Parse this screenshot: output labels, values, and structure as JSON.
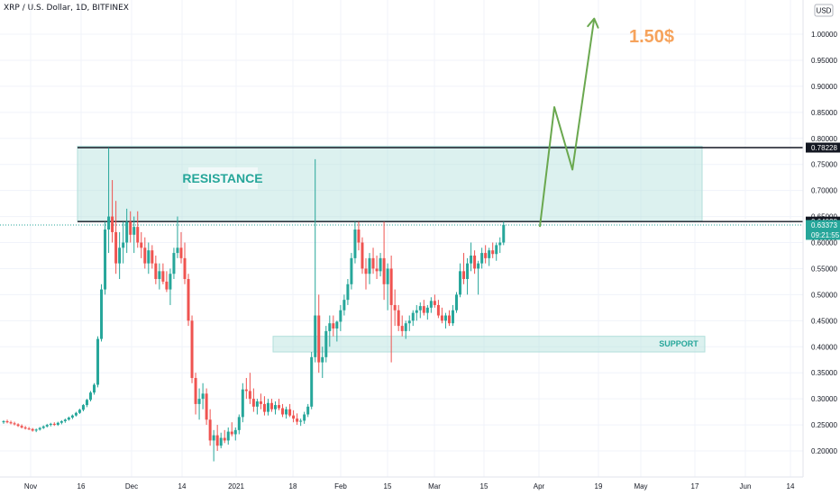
{
  "header": {
    "title": "XRP / U.S. Dollar, 1D, BITFINEX"
  },
  "axis_controls": {
    "top_left": "1",
    "currency": "USD"
  },
  "colors": {
    "up": "#26a69a",
    "down": "#ef5350",
    "zone": "#b2dfdb",
    "zone_text": "#26a69a",
    "arrow": "#6aa84f",
    "target_text": "#f6a35c",
    "grid": "#f0f3fa",
    "axis_text": "#131722"
  },
  "chart_data": {
    "type": "candlestick",
    "title": "XRP / U.S. Dollar, 1D, BITFINEX",
    "ylim": [
      0.17,
      1.06
    ],
    "y_ticks": [
      "1.00000",
      "0.95000",
      "0.90000",
      "0.85000",
      "0.80000",
      "0.75000",
      "0.70000",
      "0.65000",
      "0.60000",
      "0.55000",
      "0.50000",
      "0.45000",
      "0.40000",
      "0.35000",
      "0.30000",
      "0.25000",
      "0.20000"
    ],
    "x_ticks": [
      "Nov",
      "16",
      "Dec",
      "14",
      "2021",
      "18",
      "Feb",
      "15",
      "Mar",
      "15",
      "Apr",
      "19",
      "May",
      "17",
      "Jun",
      "14"
    ],
    "price_labels": [
      {
        "value": 0.78228,
        "text": "0.78228",
        "style": "dark"
      },
      {
        "value": 0.64028,
        "text": "0.64028",
        "style": "dark"
      },
      {
        "value": 0.63373,
        "text": "0.63373",
        "text2": "09:21:55",
        "style": "green"
      }
    ],
    "levels": [
      0.78228,
      0.64028
    ],
    "current_price": 0.63373,
    "zones": [
      {
        "label": "RESISTANCE",
        "low": 0.641,
        "high": 0.785
      },
      {
        "label": "SUPPORT",
        "low": 0.39,
        "high": 0.42
      }
    ],
    "annotations": [
      {
        "text": "1.50$",
        "kind": "target"
      }
    ],
    "projection_path": [
      {
        "t": 148,
        "y": 0.63
      },
      {
        "t": 152,
        "y": 0.86
      },
      {
        "t": 157,
        "y": 0.74
      },
      {
        "t": 163,
        "y": 1.03
      }
    ],
    "ohlc_by_day": [
      [
        0.255,
        0.259,
        0.252,
        0.257
      ],
      [
        0.257,
        0.26,
        0.253,
        0.255
      ],
      [
        0.255,
        0.258,
        0.251,
        0.253
      ],
      [
        0.253,
        0.256,
        0.249,
        0.251
      ],
      [
        0.251,
        0.253,
        0.246,
        0.248
      ],
      [
        0.248,
        0.251,
        0.243,
        0.245
      ],
      [
        0.245,
        0.248,
        0.241,
        0.243
      ],
      [
        0.243,
        0.246,
        0.24,
        0.242
      ],
      [
        0.242,
        0.244,
        0.237,
        0.239
      ],
      [
        0.239,
        0.243,
        0.236,
        0.241
      ],
      [
        0.241,
        0.246,
        0.239,
        0.244
      ],
      [
        0.244,
        0.249,
        0.242,
        0.247
      ],
      [
        0.247,
        0.252,
        0.245,
        0.25
      ],
      [
        0.25,
        0.254,
        0.247,
        0.252
      ],
      [
        0.252,
        0.255,
        0.248,
        0.25
      ],
      [
        0.25,
        0.256,
        0.248,
        0.254
      ],
      [
        0.254,
        0.259,
        0.251,
        0.257
      ],
      [
        0.257,
        0.262,
        0.254,
        0.26
      ],
      [
        0.26,
        0.266,
        0.258,
        0.264
      ],
      [
        0.264,
        0.27,
        0.261,
        0.268
      ],
      [
        0.268,
        0.275,
        0.266,
        0.273
      ],
      [
        0.273,
        0.281,
        0.271,
        0.279
      ],
      [
        0.279,
        0.29,
        0.276,
        0.288
      ],
      [
        0.288,
        0.3,
        0.284,
        0.298
      ],
      [
        0.298,
        0.315,
        0.295,
        0.312
      ],
      [
        0.312,
        0.33,
        0.308,
        0.327
      ],
      [
        0.327,
        0.42,
        0.322,
        0.415
      ],
      [
        0.415,
        0.52,
        0.41,
        0.51
      ],
      [
        0.51,
        0.64,
        0.5,
        0.625
      ],
      [
        0.625,
        0.782,
        0.58,
        0.65
      ],
      [
        0.65,
        0.72,
        0.6,
        0.62
      ],
      [
        0.62,
        0.68,
        0.54,
        0.56
      ],
      [
        0.56,
        0.62,
        0.53,
        0.59
      ],
      [
        0.59,
        0.64,
        0.56,
        0.6
      ],
      [
        0.6,
        0.665,
        0.58,
        0.64
      ],
      [
        0.64,
        0.66,
        0.6,
        0.615
      ],
      [
        0.615,
        0.65,
        0.58,
        0.63
      ],
      [
        0.63,
        0.66,
        0.59,
        0.6
      ],
      [
        0.6,
        0.62,
        0.57,
        0.59
      ],
      [
        0.59,
        0.61,
        0.55,
        0.56
      ],
      [
        0.56,
        0.6,
        0.54,
        0.585
      ],
      [
        0.585,
        0.595,
        0.55,
        0.56
      ],
      [
        0.56,
        0.575,
        0.52,
        0.53
      ],
      [
        0.53,
        0.56,
        0.51,
        0.545
      ],
      [
        0.545,
        0.56,
        0.52,
        0.525
      ],
      [
        0.525,
        0.545,
        0.505,
        0.51
      ],
      [
        0.51,
        0.55,
        0.48,
        0.54
      ],
      [
        0.54,
        0.59,
        0.53,
        0.58
      ],
      [
        0.58,
        0.65,
        0.57,
        0.59
      ],
      [
        0.59,
        0.62,
        0.56,
        0.57
      ],
      [
        0.57,
        0.6,
        0.52,
        0.53
      ],
      [
        0.53,
        0.54,
        0.44,
        0.45
      ],
      [
        0.45,
        0.46,
        0.33,
        0.34
      ],
      [
        0.34,
        0.35,
        0.27,
        0.29
      ],
      [
        0.29,
        0.32,
        0.26,
        0.3
      ],
      [
        0.3,
        0.33,
        0.28,
        0.31
      ],
      [
        0.31,
        0.32,
        0.25,
        0.26
      ],
      [
        0.26,
        0.28,
        0.21,
        0.22
      ],
      [
        0.22,
        0.24,
        0.18,
        0.23
      ],
      [
        0.23,
        0.25,
        0.2,
        0.21
      ],
      [
        0.21,
        0.235,
        0.205,
        0.225
      ],
      [
        0.225,
        0.24,
        0.215,
        0.22
      ],
      [
        0.22,
        0.245,
        0.212,
        0.237
      ],
      [
        0.237,
        0.255,
        0.228,
        0.232
      ],
      [
        0.232,
        0.245,
        0.22,
        0.24
      ],
      [
        0.24,
        0.27,
        0.232,
        0.265
      ],
      [
        0.265,
        0.33,
        0.255,
        0.318
      ],
      [
        0.318,
        0.34,
        0.3,
        0.315
      ],
      [
        0.315,
        0.35,
        0.29,
        0.3
      ],
      [
        0.3,
        0.32,
        0.275,
        0.285
      ],
      [
        0.285,
        0.3,
        0.27,
        0.295
      ],
      [
        0.295,
        0.31,
        0.28,
        0.29
      ],
      [
        0.29,
        0.305,
        0.268,
        0.275
      ],
      [
        0.275,
        0.3,
        0.268,
        0.292
      ],
      [
        0.292,
        0.3,
        0.275,
        0.28
      ],
      [
        0.28,
        0.295,
        0.27,
        0.288
      ],
      [
        0.288,
        0.3,
        0.278,
        0.282
      ],
      [
        0.282,
        0.29,
        0.265,
        0.27
      ],
      [
        0.27,
        0.285,
        0.262,
        0.28
      ],
      [
        0.28,
        0.29,
        0.265,
        0.268
      ],
      [
        0.268,
        0.278,
        0.255,
        0.262
      ],
      [
        0.262,
        0.272,
        0.25,
        0.256
      ],
      [
        0.256,
        0.262,
        0.248,
        0.258
      ],
      [
        0.258,
        0.275,
        0.252,
        0.27
      ],
      [
        0.27,
        0.29,
        0.265,
        0.285
      ],
      [
        0.285,
        0.39,
        0.28,
        0.38
      ],
      [
        0.38,
        0.76,
        0.37,
        0.46
      ],
      [
        0.46,
        0.5,
        0.35,
        0.37
      ],
      [
        0.37,
        0.4,
        0.34,
        0.38
      ],
      [
        0.38,
        0.44,
        0.37,
        0.43
      ],
      [
        0.43,
        0.46,
        0.4,
        0.445
      ],
      [
        0.445,
        0.46,
        0.42,
        0.435
      ],
      [
        0.435,
        0.45,
        0.41,
        0.448
      ],
      [
        0.448,
        0.48,
        0.43,
        0.47
      ],
      [
        0.47,
        0.5,
        0.46,
        0.49
      ],
      [
        0.49,
        0.53,
        0.48,
        0.52
      ],
      [
        0.52,
        0.58,
        0.51,
        0.57
      ],
      [
        0.57,
        0.64,
        0.56,
        0.625
      ],
      [
        0.625,
        0.64,
        0.585,
        0.6
      ],
      [
        0.6,
        0.61,
        0.54,
        0.55
      ],
      [
        0.55,
        0.57,
        0.51,
        0.54
      ],
      [
        0.54,
        0.58,
        0.52,
        0.57
      ],
      [
        0.57,
        0.59,
        0.54,
        0.55
      ],
      [
        0.55,
        0.575,
        0.53,
        0.545
      ],
      [
        0.545,
        0.58,
        0.535,
        0.57
      ],
      [
        0.57,
        0.64,
        0.49,
        0.52
      ],
      [
        0.52,
        0.56,
        0.47,
        0.55
      ],
      [
        0.55,
        0.575,
        0.37,
        0.48
      ],
      [
        0.48,
        0.51,
        0.44,
        0.47
      ],
      [
        0.47,
        0.48,
        0.43,
        0.44
      ],
      [
        0.44,
        0.46,
        0.42,
        0.43
      ],
      [
        0.43,
        0.45,
        0.415,
        0.445
      ],
      [
        0.445,
        0.46,
        0.43,
        0.45
      ],
      [
        0.45,
        0.47,
        0.44,
        0.465
      ],
      [
        0.465,
        0.48,
        0.45,
        0.47
      ],
      [
        0.47,
        0.485,
        0.455,
        0.478
      ],
      [
        0.478,
        0.49,
        0.46,
        0.465
      ],
      [
        0.465,
        0.48,
        0.452,
        0.475
      ],
      [
        0.475,
        0.495,
        0.465,
        0.488
      ],
      [
        0.488,
        0.5,
        0.475,
        0.48
      ],
      [
        0.48,
        0.49,
        0.455,
        0.46
      ],
      [
        0.46,
        0.475,
        0.445,
        0.45
      ],
      [
        0.45,
        0.465,
        0.435,
        0.46
      ],
      [
        0.46,
        0.47,
        0.44,
        0.445
      ],
      [
        0.445,
        0.48,
        0.44,
        0.47
      ],
      [
        0.47,
        0.505,
        0.465,
        0.5
      ],
      [
        0.5,
        0.56,
        0.495,
        0.545
      ],
      [
        0.545,
        0.58,
        0.52,
        0.53
      ],
      [
        0.53,
        0.57,
        0.5,
        0.56
      ],
      [
        0.56,
        0.6,
        0.545,
        0.575
      ],
      [
        0.575,
        0.585,
        0.54,
        0.55
      ],
      [
        0.55,
        0.565,
        0.5,
        0.56
      ],
      [
        0.56,
        0.59,
        0.55,
        0.58
      ],
      [
        0.58,
        0.595,
        0.56,
        0.57
      ],
      [
        0.57,
        0.59,
        0.555,
        0.585
      ],
      [
        0.585,
        0.6,
        0.57,
        0.578
      ],
      [
        0.578,
        0.6,
        0.565,
        0.595
      ],
      [
        0.595,
        0.61,
        0.58,
        0.6
      ],
      [
        0.6,
        0.64,
        0.595,
        0.634
      ]
    ]
  }
}
